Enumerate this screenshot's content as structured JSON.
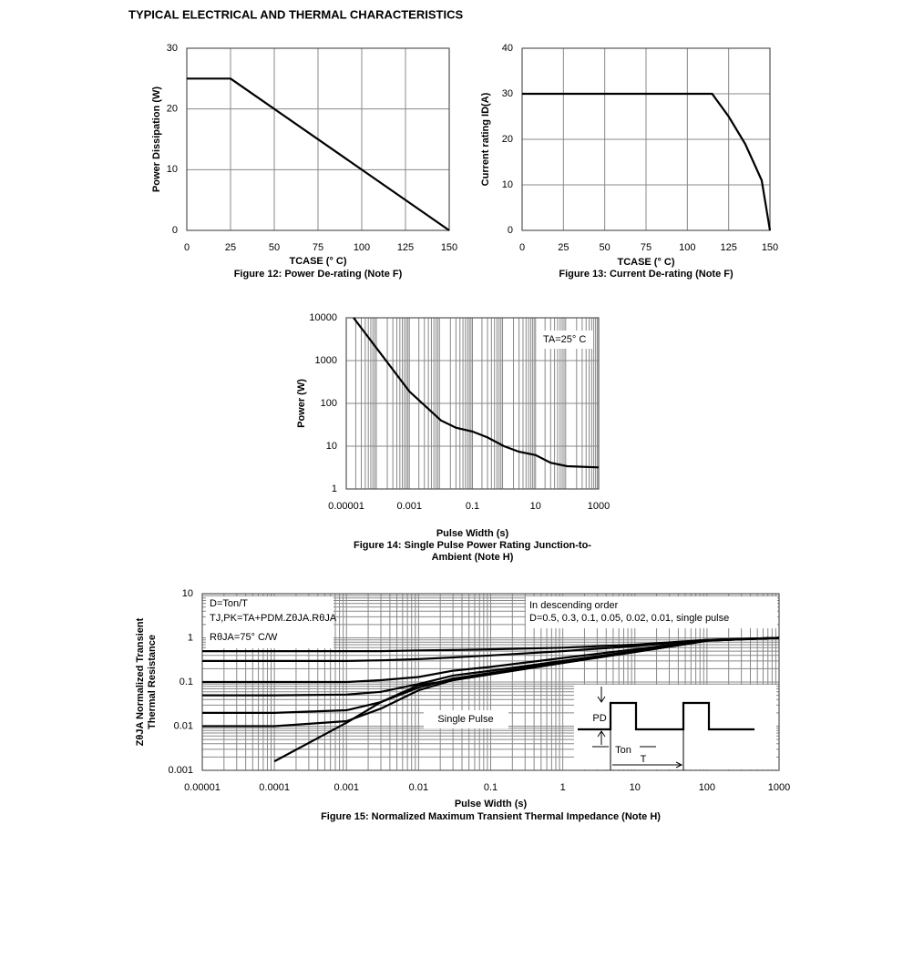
{
  "title": "TYPICAL ELECTRICAL AND THERMAL CHARACTERISTICS",
  "chart_data": [
    {
      "type": "line",
      "title": [
        "Figure 12: Power De-rating (Note F)"
      ],
      "xlabel": "TCASE (° C)",
      "ylabel": [
        "Power Dissipation (W)"
      ],
      "x": [
        0,
        25,
        150
      ],
      "values": [
        25,
        25,
        0
      ],
      "color": "#000000",
      "xlim": [
        0,
        150
      ],
      "xticks": [
        0,
        25,
        50,
        75,
        100,
        125,
        150
      ],
      "ylim": [
        0,
        30
      ],
      "yticks": [
        0,
        10,
        20,
        30
      ],
      "grid": true
    },
    {
      "type": "line",
      "title": [
        "Figure 13: Current De-rating (Note F)"
      ],
      "xlabel": "TCASE (° C)",
      "ylabel": [
        "Current rating ID(A)"
      ],
      "x": [
        0,
        115,
        125,
        135,
        140,
        145,
        150
      ],
      "values": [
        30,
        30,
        25,
        19,
        15,
        11,
        0
      ],
      "color": "#000000",
      "xlim": [
        0,
        150
      ],
      "xticks": [
        0,
        25,
        50,
        75,
        100,
        125,
        150
      ],
      "ylim": [
        0,
        40
      ],
      "yticks": [
        0,
        10,
        20,
        30,
        40
      ],
      "grid": true
    },
    {
      "type": "line",
      "title": [
        "Figure 14: Single Pulse Power Rating Junction-to-",
        "Ambient (Note H)"
      ],
      "xlabel": "Pulse Width (s)",
      "ylabel": [
        "Power (W)"
      ],
      "x": [
        1.7e-05,
        0.001,
        0.01,
        0.03,
        0.1,
        0.3,
        1,
        3,
        10,
        30,
        100,
        1000
      ],
      "values": [
        10000,
        190,
        40,
        27,
        22,
        16,
        10,
        7.4,
        6.2,
        4.1,
        3.4,
        3.2
      ],
      "color": "#000000",
      "log_scale": true,
      "xlim": [
        1e-05,
        1000
      ],
      "xticks": [
        1e-05,
        0.001,
        0.1,
        10,
        1000
      ],
      "ylim": [
        1,
        10000
      ],
      "yticks": [
        1,
        10,
        100,
        1000,
        10000
      ],
      "grid": true,
      "minor_grid": [
        "x"
      ],
      "annotations": [
        "TA=25° C"
      ]
    },
    {
      "type": "line",
      "title": [
        "Figure 15: Normalized Maximum Transient Thermal Impedance (Note H)"
      ],
      "xlabel": "Pulse Width (s)",
      "ylabel": [
        "ZθJA Normalized Transient",
        "Thermal Resistance"
      ],
      "x": [
        1e-05,
        0.0001,
        0.001,
        0.003,
        0.01,
        0.03,
        0.1,
        1,
        10,
        100,
        1000
      ],
      "series": [
        {
          "color": "#000000",
          "values": [
            0.5,
            0.5,
            0.5,
            0.5,
            0.52,
            0.53,
            0.55,
            0.6,
            0.7,
            0.9,
            1
          ]
        },
        {
          "color": "#000000",
          "values": [
            0.3,
            0.3,
            0.3,
            0.31,
            0.33,
            0.36,
            0.4,
            0.5,
            0.65,
            0.9,
            1
          ]
        },
        {
          "color": "#000000",
          "values": [
            0.1,
            0.1,
            0.1,
            0.11,
            0.13,
            0.18,
            0.22,
            0.35,
            0.55,
            0.88,
            1
          ]
        },
        {
          "color": "#000000",
          "values": [
            0.05,
            0.05,
            0.052,
            0.06,
            0.09,
            0.14,
            0.18,
            0.3,
            0.5,
            0.87,
            1
          ]
        },
        {
          "color": "#000000",
          "values": [
            0.02,
            0.02,
            0.023,
            0.035,
            0.075,
            0.12,
            0.16,
            0.28,
            0.5,
            0.87,
            1
          ]
        },
        {
          "color": "#000000",
          "values": [
            0.01,
            0.01,
            0.013,
            0.025,
            0.065,
            0.11,
            0.15,
            0.27,
            0.48,
            0.86,
            1
          ]
        },
        {
          "color": "#000000",
          "values": [
            null,
            0.0016,
            0.012,
            0.035,
            0.085,
            0.11,
            0.15,
            0.27,
            0.48,
            0.86,
            1
          ]
        }
      ],
      "log_scale": true,
      "xlim": [
        1e-05,
        1000
      ],
      "xticks": [
        1e-05,
        0.0001,
        0.001,
        0.01,
        0.1,
        1,
        10,
        100,
        1000
      ],
      "ylim": [
        0.001,
        10
      ],
      "yticks": [
        0.001,
        0.01,
        0.1,
        1,
        10
      ],
      "grid": true,
      "minor_grid": [
        "x",
        "y"
      ],
      "annotations": [
        "D=Ton/T",
        "TJ,PK=TA+PDM.ZθJA.RθJA",
        "RθJA=75° C/W",
        "In descending order",
        "D=0.5, 0.3, 0.1, 0.05, 0.02, 0.01, single pulse",
        "Single Pulse",
        "PD",
        "Ton",
        "T"
      ]
    }
  ]
}
